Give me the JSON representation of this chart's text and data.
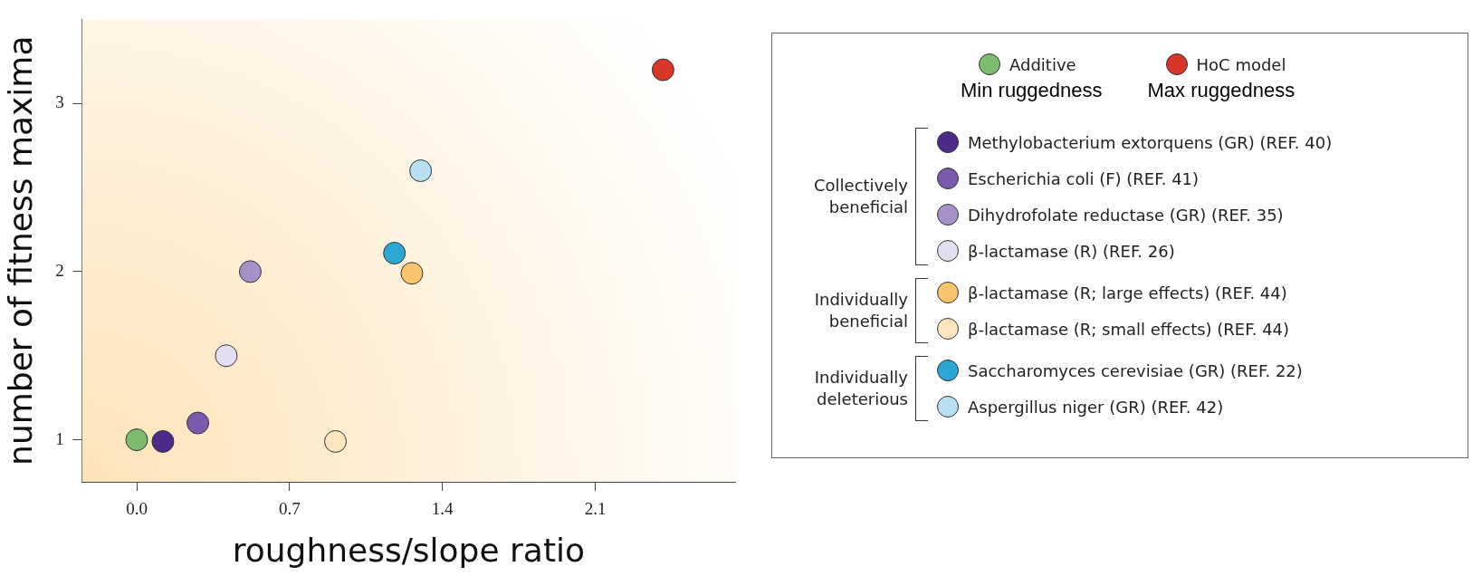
{
  "chart_data": {
    "type": "scatter",
    "xlabel": "roughness/slope ratio",
    "ylabel": "number of fitness maxima",
    "xlim": [
      -0.25,
      2.74
    ],
    "ylim": [
      0.75,
      3.5
    ],
    "xticks": [
      {
        "value": 0,
        "label": "0.0"
      },
      0.7,
      1.4,
      2.1
    ],
    "yticks": [
      1,
      2,
      3
    ],
    "grid": false,
    "legend": "right",
    "marker": "circle",
    "series": [
      {
        "name": "Additive",
        "color": "#7dbb6e",
        "x": [
          0
        ],
        "values": [
          1
        ]
      },
      {
        "name": "HoC model",
        "color": "#d9362a",
        "x": [
          2.41
        ],
        "values": [
          3.2
        ]
      },
      {
        "name": "Methylobacterium extorquens (GR) (REF. 40)",
        "color": "#4b2a8c",
        "x": [
          0.12
        ],
        "values": [
          0.99
        ]
      },
      {
        "name": "Escherichia coli (F) (REF. 41)",
        "color": "#7a5aad",
        "x": [
          0.28
        ],
        "values": [
          1.1
        ]
      },
      {
        "name": "Dihydrofolate reductase (GR) (REF. 35)",
        "color": "#a591c8",
        "x": [
          0.52
        ],
        "values": [
          2.0
        ]
      },
      {
        "name": "β-lactamase (R) (REF. 26)",
        "color": "#e4dff0",
        "x": [
          0.41
        ],
        "values": [
          1.5
        ]
      },
      {
        "name": "β-lactamase (R; large effects) (REF. 44)",
        "color": "#f8c56a",
        "x": [
          1.26
        ],
        "values": [
          1.99
        ]
      },
      {
        "name": "β-lactamase (R; small effects) (REF. 44)",
        "color": "#fde6bd",
        "x": [
          0.91
        ],
        "values": [
          0.99
        ]
      },
      {
        "name": "Saccharomyces cerevisiae (GR) (REF. 22)",
        "color": "#2ba7d6",
        "x": [
          1.18
        ],
        "values": [
          2.11
        ]
      },
      {
        "name": "Aspergillus niger (GR) (REF. 42)",
        "color": "#b8dff2",
        "x": [
          1.3
        ],
        "values": [
          2.6
        ]
      }
    ],
    "annotations": [
      "Min ruggedness",
      "Max ruggedness",
      "Collectively beneficial",
      "Individually beneficial",
      "Individually deleterious"
    ]
  }
}
